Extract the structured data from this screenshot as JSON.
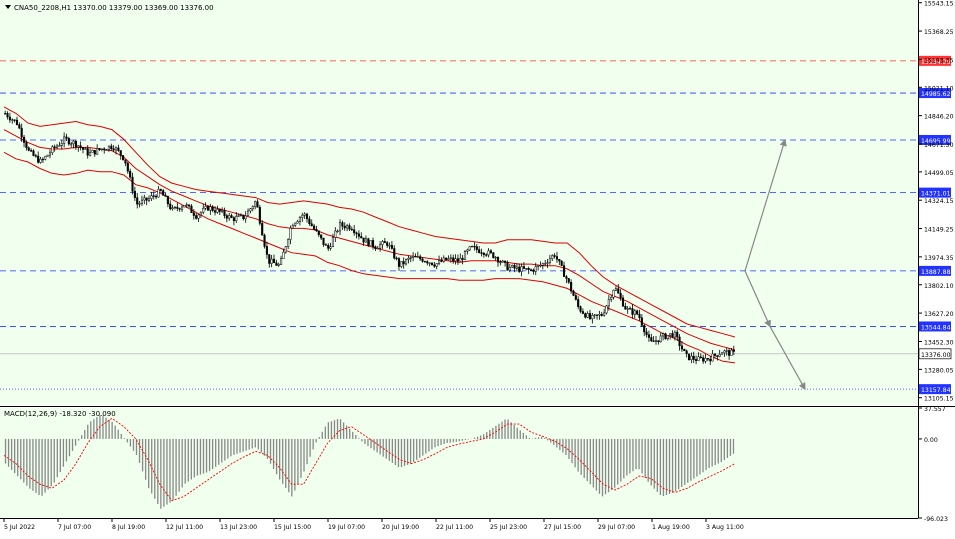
{
  "header": {
    "symbol_line": "CNA50_2208,H1  13370.00 13379.00 13369.00 13376.00",
    "macd_label": "MACD(12,26,9) -18.320 -30.090"
  },
  "colors": {
    "background": "#f0ffee",
    "bollinger": "#e00000",
    "candles": "#000000",
    "level_blue": "#2233ff",
    "level_red": "#ff3333",
    "current_price_line": "#aaaaaa",
    "macd_hist": "#888888",
    "macd_signal": "#ff0000",
    "projection_arrows": "#888888"
  },
  "chart_data": [
    {
      "type": "candlestick",
      "timeframe": "H1",
      "ylim": [
        13060,
        15560
      ],
      "y_ticks": [
        15543.15,
        15368.25,
        15193.35,
        15021.1,
        14846.2,
        14671.3,
        14499.05,
        14324.15,
        14149.25,
        13974.35,
        13802.1,
        13627.2,
        13452.3,
        13280.05,
        13105.15
      ],
      "x_ticks": [
        "5 Jul 2022",
        "7 Jul 07:00",
        "8 Jul 19:00",
        "12 Jul 11:00",
        "13 Jul 23:00",
        "15 Jul 15:00",
        "19 Jul 07:00",
        "20 Jul 19:00",
        "22 Jul 11:00",
        "25 Jul 23:00",
        "27 Jul 15:00",
        "29 Jul 07:00",
        "1 Aug 19:00",
        "3 Aug 11:00"
      ],
      "close_path": [
        14860,
        14800,
        14620,
        14560,
        14640,
        14700,
        14670,
        14610,
        14640,
        14660,
        14580,
        14300,
        14330,
        14380,
        14260,
        14300,
        14230,
        14280,
        14250,
        14210,
        14220,
        14320,
        13950,
        13920,
        14180,
        14240,
        14130,
        14020,
        14170,
        14160,
        14080,
        14040,
        14060,
        13920,
        13970,
        13960,
        13930,
        13960,
        13950,
        14030,
        14010,
        13980,
        13910,
        13900,
        13890,
        13930,
        13990,
        13840,
        13660,
        13590,
        13620,
        13790,
        13650,
        13620,
        13440,
        13480,
        13500,
        13360,
        13340,
        13350,
        13390,
        13376
      ],
      "bollinger": {
        "upper": [
          14900,
          14860,
          14800,
          14780,
          14790,
          14800,
          14810,
          14790,
          14780,
          14760,
          14700,
          14620,
          14540,
          14470,
          14430,
          14410,
          14390,
          14380,
          14370,
          14360,
          14350,
          14340,
          14310,
          14300,
          14310,
          14320,
          14310,
          14300,
          14280,
          14270,
          14250,
          14220,
          14190,
          14160,
          14140,
          14120,
          14100,
          14090,
          14080,
          14070,
          14060,
          14060,
          14080,
          14080,
          14080,
          14070,
          14060,
          14060,
          14000,
          13920,
          13850,
          13800,
          13760,
          13720,
          13680,
          13640,
          13600,
          13560,
          13540,
          13520,
          13500,
          13480
        ],
        "middle": [
          14760,
          14720,
          14680,
          14650,
          14640,
          14640,
          14650,
          14650,
          14640,
          14630,
          14590,
          14520,
          14470,
          14420,
          14380,
          14350,
          14320,
          14290,
          14270,
          14250,
          14230,
          14210,
          14180,
          14160,
          14150,
          14150,
          14140,
          14110,
          14090,
          14070,
          14050,
          14030,
          14010,
          13990,
          13980,
          13970,
          13960,
          13950,
          13940,
          13950,
          13950,
          13950,
          13940,
          13930,
          13930,
          13920,
          13920,
          13900,
          13860,
          13810,
          13760,
          13730,
          13700,
          13660,
          13620,
          13580,
          13540,
          13500,
          13470,
          13440,
          13420,
          13400
        ],
        "lower": [
          14620,
          14580,
          14560,
          14520,
          14490,
          14480,
          14490,
          14510,
          14500,
          14500,
          14480,
          14420,
          14400,
          14370,
          14330,
          14290,
          14250,
          14210,
          14180,
          14150,
          14120,
          14090,
          14060,
          14030,
          14000,
          13990,
          13980,
          13940,
          13920,
          13890,
          13870,
          13860,
          13850,
          13840,
          13840,
          13840,
          13840,
          13840,
          13830,
          13830,
          13830,
          13840,
          13840,
          13840,
          13830,
          13820,
          13800,
          13780,
          13740,
          13700,
          13670,
          13640,
          13610,
          13580,
          13540,
          13500,
          13470,
          13430,
          13400,
          13360,
          13330,
          13320
        ]
      },
      "levels": [
        {
          "price": 15184.26,
          "label": "15184.26",
          "style": "red-dashed"
        },
        {
          "price": 14985.62,
          "label": "14985.62",
          "style": "blue-dashed"
        },
        {
          "price": 14695.99,
          "label": "14695.99",
          "style": "blue-dashed"
        },
        {
          "price": 14371.01,
          "label": "14371.01",
          "style": "blue-dashed"
        },
        {
          "price": 13887.88,
          "label": "13887.88",
          "style": "blue-dashed"
        },
        {
          "price": 13544.84,
          "label": "13544.84",
          "style": "blue-dashed"
        },
        {
          "price": 13157.84,
          "label": "13157.84",
          "style": "blue-dotted"
        }
      ],
      "current_price": {
        "price": 13376.0,
        "label": "13376.00"
      },
      "projections": [
        {
          "from": 13887.88,
          "to": 14695.99,
          "direction": "up"
        },
        {
          "from": 13887.88,
          "to": 13544.84,
          "direction": "down"
        },
        {
          "from": 13544.84,
          "to": 13157.84,
          "direction": "down"
        }
      ]
    },
    {
      "type": "bar",
      "name": "MACD(12,26,9)",
      "ylim": [
        -96.023,
        37.557
      ],
      "y_ticks": [
        37.557,
        0.0,
        -96.023
      ],
      "histogram": [
        -30,
        -45,
        -60,
        -70,
        -55,
        -30,
        -5,
        20,
        30,
        20,
        0,
        -20,
        -60,
        -85,
        -75,
        -55,
        -45,
        -40,
        -30,
        -20,
        -15,
        -10,
        -25,
        -50,
        -70,
        -40,
        -5,
        20,
        25,
        10,
        -5,
        -15,
        -25,
        -35,
        -30,
        -20,
        -10,
        -5,
        -3,
        0,
        5,
        15,
        25,
        12,
        0,
        3,
        -8,
        -20,
        -40,
        -55,
        -70,
        -60,
        -45,
        -35,
        -55,
        -70,
        -65,
        -55,
        -45,
        -35,
        -28,
        -18
      ],
      "signal": [
        -20,
        -30,
        -45,
        -55,
        -60,
        -50,
        -30,
        -5,
        15,
        25,
        15,
        0,
        -25,
        -55,
        -75,
        -70,
        -60,
        -50,
        -40,
        -30,
        -22,
        -15,
        -20,
        -35,
        -55,
        -55,
        -30,
        -5,
        10,
        15,
        5,
        -5,
        -15,
        -25,
        -30,
        -25,
        -18,
        -10,
        -6,
        -3,
        0,
        8,
        18,
        18,
        8,
        3,
        -3,
        -12,
        -25,
        -40,
        -55,
        -62,
        -55,
        -45,
        -48,
        -60,
        -65,
        -60,
        -52,
        -45,
        -38,
        -30
      ]
    }
  ]
}
